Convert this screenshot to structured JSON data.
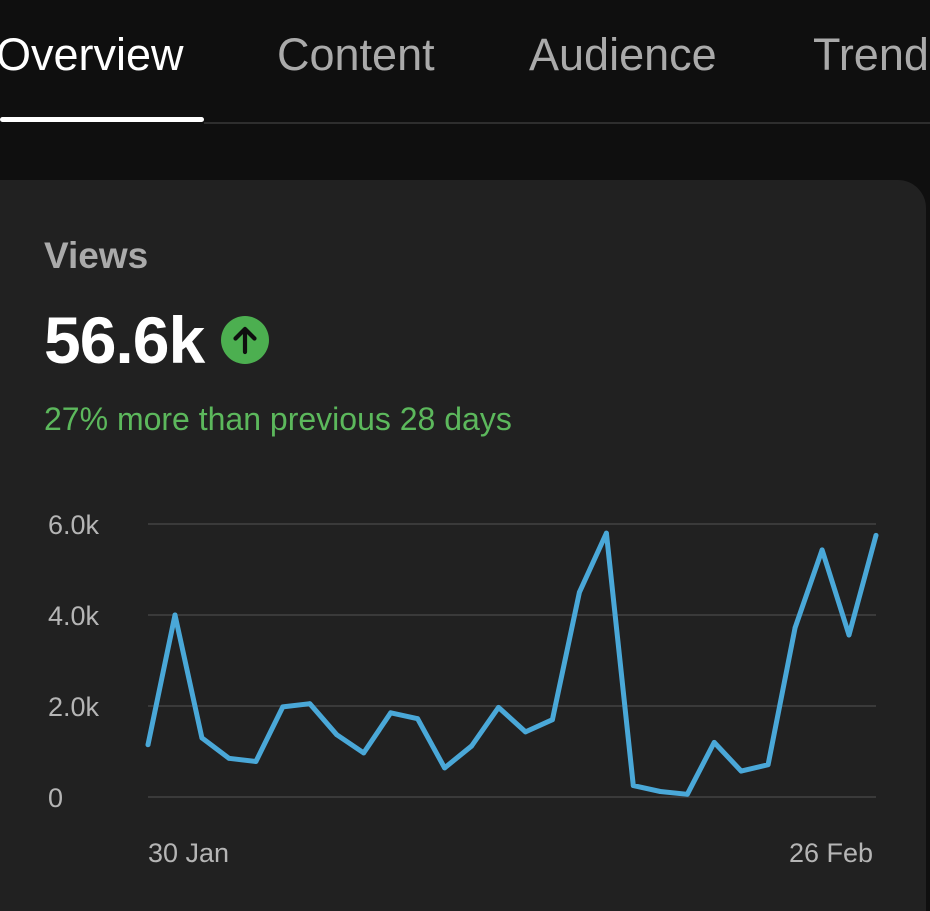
{
  "tabs": [
    {
      "label": "Overview",
      "active": true
    },
    {
      "label": "Content",
      "active": false
    },
    {
      "label": "Audience",
      "active": false
    },
    {
      "label": "Trends",
      "active": false
    }
  ],
  "card": {
    "metric_label": "Views",
    "metric_value": "56.6k",
    "trend_icon": "arrow-up-icon",
    "trend_text": "27% more than previous 28 days"
  },
  "colors": {
    "background": "#0f0f0f",
    "card": "#212121",
    "positive": "#4caf50",
    "line": "#4aa8d8",
    "gridline": "#3a3a3a"
  },
  "chart_data": {
    "type": "line",
    "title": "",
    "xlabel": "",
    "ylabel": "",
    "ylim": [
      0,
      6000
    ],
    "yticks": [
      0,
      2000,
      4000,
      6000
    ],
    "ytick_labels": [
      "0",
      "2.0k",
      "4.0k",
      "6.0k"
    ],
    "x_labels": [
      "30 Jan",
      "26 Feb"
    ],
    "series": [
      {
        "name": "Views",
        "values": [
          1150,
          4000,
          1300,
          850,
          780,
          1980,
          2050,
          1370,
          970,
          1850,
          1720,
          640,
          1120,
          1970,
          1430,
          1700,
          4500,
          5800,
          250,
          120,
          60,
          1200,
          570,
          710,
          3720,
          5430,
          3560,
          5750
        ]
      }
    ]
  }
}
